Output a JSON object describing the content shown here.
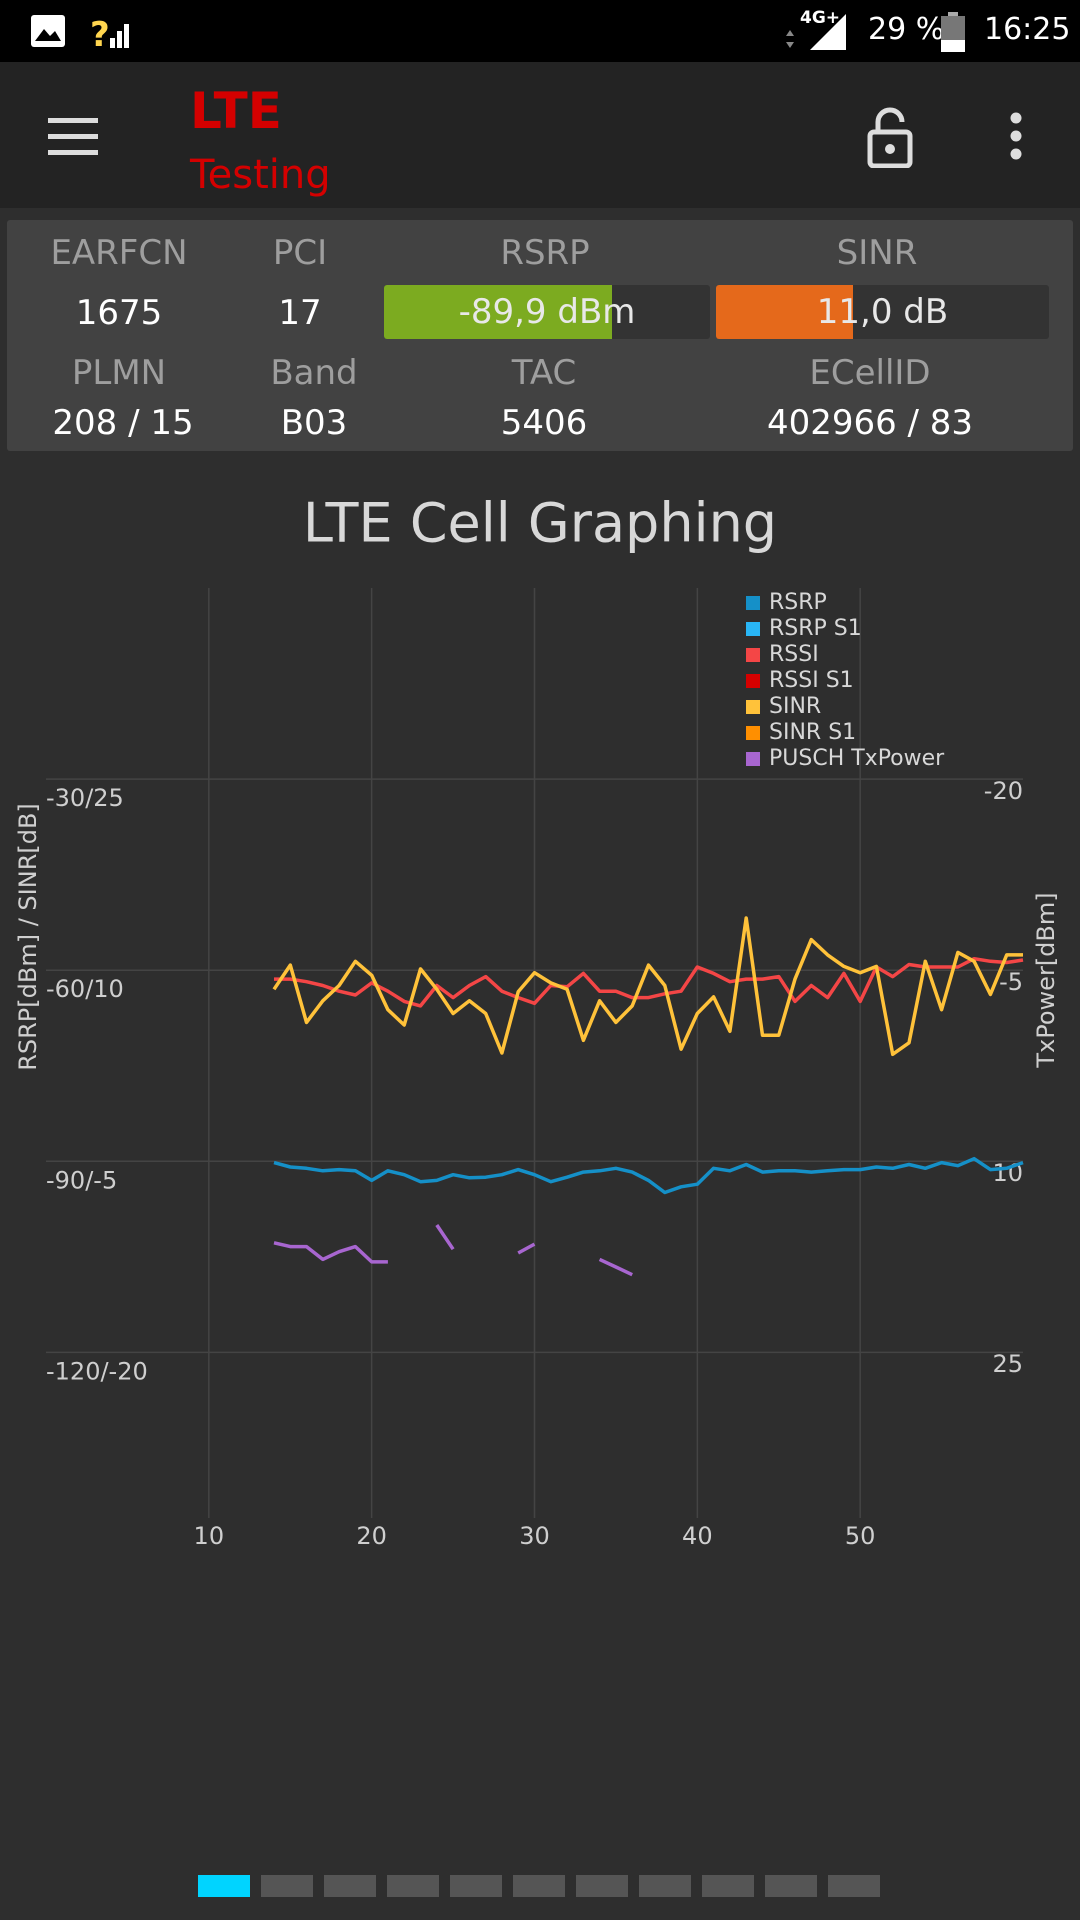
{
  "status_bar": {
    "network": "4G+",
    "battery": "29 %",
    "time": "16:25"
  },
  "app_bar": {
    "title": "LTE",
    "subtitle": "Testing"
  },
  "panel": {
    "row1_headers": [
      "EARFCN",
      "PCI",
      "RSRP",
      "SINR"
    ],
    "row1_values": [
      "1675",
      "17",
      "-89,9 dBm",
      "11,0 dB"
    ],
    "row2_headers": [
      "PLMN",
      "Band",
      "TAC",
      "ECellID"
    ],
    "row2_values": [
      "208 / 15",
      "B03",
      "5406",
      "402966 / 83"
    ]
  },
  "chart_data": {
    "type": "line",
    "title": "LTE Cell Graphing",
    "y_label": "RSRP[dBm] / SINR[dB]",
    "y2_label": "TxPower[dBm]",
    "xlim": [
      0,
      60
    ],
    "xticks": [
      10,
      20,
      30,
      40,
      50
    ],
    "ylim": [
      -146,
      0
    ],
    "yticks": [
      {
        "value": -30,
        "label": "-30/25"
      },
      {
        "value": -60,
        "label": "-60/10"
      },
      {
        "value": -90,
        "label": "-90/-5"
      },
      {
        "value": -120,
        "label": "-120/-20"
      }
    ],
    "y2lim": [
      37,
      -36
    ],
    "y2ticks": [
      -20,
      -5,
      10,
      25
    ],
    "y3lim": [
      -33,
      40
    ],
    "grid": true,
    "legend": "top-right",
    "x": [
      14,
      15,
      16,
      17,
      18,
      19,
      20,
      21,
      22,
      23,
      24,
      25,
      26,
      27,
      28,
      29,
      30,
      31,
      32,
      33,
      34,
      35,
      36,
      37,
      38,
      39,
      40,
      41,
      42,
      43,
      44,
      45,
      46,
      47,
      48,
      49,
      50,
      51,
      52,
      53,
      54,
      55,
      56,
      57,
      58,
      59,
      60
    ],
    "series": [
      {
        "name": "RSRP",
        "color": "#1590c8",
        "values": [
          -90.2,
          -90.9,
          -91.1,
          -91.5,
          -91.3,
          -91.5,
          -93.0,
          -91.5,
          -92.1,
          -93.2,
          -93.0,
          -92.1,
          -92.6,
          -92.5,
          -92.1,
          -91.3,
          -92.1,
          -93.2,
          -92.5,
          -91.7,
          -91.5,
          -91.1,
          -91.7,
          -93.0,
          -94.9,
          -94.0,
          -93.6,
          -91.1,
          -91.5,
          -90.5,
          -91.7,
          -91.5,
          -91.5,
          -91.7,
          -91.5,
          -91.3,
          -91.3,
          -90.9,
          -91.1,
          -90.5,
          -91.1,
          -90.2,
          -90.7,
          -89.6,
          -91.3,
          -91.1,
          -90.2
        ]
      },
      {
        "name": "RSRP S1",
        "color": "#29b6f6",
        "values": [
          null,
          null,
          null,
          null,
          null,
          null,
          null,
          null,
          null,
          null,
          null,
          null,
          null,
          null,
          null,
          null,
          null,
          null,
          null,
          null,
          null,
          null,
          null,
          null,
          null,
          null,
          null,
          null,
          null,
          null,
          null,
          null,
          null,
          null,
          null,
          null,
          null,
          null,
          null,
          null,
          null,
          null,
          null,
          null,
          null,
          null,
          null
        ]
      },
      {
        "name": "RSSI",
        "color": "#f44646",
        "values": [
          -61.4,
          -61.4,
          -61.8,
          -62.4,
          -63.3,
          -63.9,
          -62.0,
          -63.3,
          -64.9,
          -65.6,
          -62.4,
          -64.3,
          -62.4,
          -61.0,
          -63.3,
          -64.3,
          -65.2,
          -62.4,
          -62.6,
          -60.5,
          -63.3,
          -63.3,
          -64.3,
          -64.3,
          -63.7,
          -63.3,
          -59.5,
          -60.5,
          -61.8,
          -61.4,
          -61.4,
          -61.0,
          -64.9,
          -62.4,
          -64.3,
          -60.5,
          -64.9,
          -59.5,
          -61.0,
          -59.1,
          -59.5,
          -59.5,
          -59.5,
          -58.2,
          -58.6,
          -58.8,
          -58.4
        ]
      },
      {
        "name": "RSSI S1",
        "color": "#d50000",
        "values": [
          null,
          null,
          null,
          null,
          null,
          null,
          null,
          null,
          null,
          null,
          null,
          null,
          null,
          null,
          null,
          null,
          null,
          null,
          null,
          null,
          null,
          null,
          null,
          null,
          null,
          null,
          null,
          null,
          null,
          null,
          null,
          null,
          null,
          null,
          null,
          null,
          null,
          null,
          null,
          null,
          null,
          null,
          null,
          null,
          null,
          null,
          null
        ]
      },
      {
        "name": "SINR",
        "color": "#ffc23a",
        "axis": "y3",
        "values": [
          8.5,
          10.4,
          5.9,
          7.6,
          8.8,
          10.7,
          9.6,
          6.9,
          5.7,
          10.1,
          8.5,
          6.6,
          7.6,
          6.6,
          3.5,
          8.3,
          9.8,
          9.0,
          8.5,
          4.5,
          7.6,
          5.9,
          7.2,
          10.4,
          8.8,
          3.8,
          6.6,
          7.9,
          5.2,
          14.1,
          4.9,
          4.9,
          9.3,
          12.4,
          11.2,
          10.3,
          9.8,
          10.3,
          3.4,
          4.3,
          10.7,
          6.9,
          11.4,
          10.7,
          8.1,
          11.2,
          11.2
        ]
      },
      {
        "name": "SINR S1",
        "color": "#ff8f00",
        "axis": "y3",
        "values": [
          null,
          null,
          null,
          null,
          null,
          null,
          null,
          null,
          null,
          null,
          null,
          null,
          null,
          null,
          null,
          null,
          null,
          null,
          null,
          null,
          null,
          null,
          null,
          null,
          null,
          null,
          null,
          null,
          null,
          null,
          null,
          null,
          null,
          null,
          null,
          null,
          null,
          null,
          null,
          null,
          null,
          null,
          null,
          null,
          null,
          null,
          null
        ]
      },
      {
        "name": "PUSCH TxPower",
        "color": "#a866d0",
        "axis": "y2",
        "values": [
          15.4,
          15.7,
          15.7,
          16.7,
          16.1,
          15.7,
          16.9,
          16.9,
          null,
          null,
          14.0,
          15.9,
          null,
          null,
          null,
          16.2,
          15.5,
          null,
          null,
          null,
          16.7,
          17.3,
          17.9,
          null,
          null,
          null,
          null,
          null,
          null,
          null,
          null,
          null,
          null,
          null,
          null,
          null,
          null,
          null,
          null,
          null,
          null,
          null,
          null,
          null,
          null,
          null,
          null
        ]
      }
    ]
  }
}
